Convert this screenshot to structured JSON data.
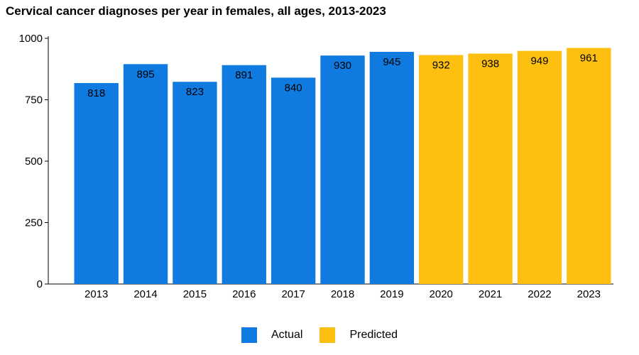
{
  "chart_data": {
    "type": "bar",
    "title": "Cervical cancer diagnoses per year in females, all ages, 2013-2023",
    "categories": [
      "2013",
      "2014",
      "2015",
      "2016",
      "2017",
      "2018",
      "2019",
      "2020",
      "2021",
      "2022",
      "2023"
    ],
    "series": [
      {
        "name": "Actual",
        "color": "#0f7ae0",
        "values": [
          818,
          895,
          823,
          891,
          840,
          930,
          945,
          null,
          null,
          null,
          null
        ]
      },
      {
        "name": "Predicted",
        "color": "#fdc010",
        "values": [
          null,
          null,
          null,
          null,
          null,
          null,
          null,
          932,
          938,
          949,
          961
        ]
      }
    ],
    "data_labels": [
      "818",
      "895",
      "823",
      "891",
      "840",
      "930",
      "945",
      "932",
      "938",
      "949",
      "961"
    ],
    "ylim": [
      0,
      1000
    ],
    "yticks": [
      0,
      250,
      500,
      750,
      1000
    ],
    "xlabel": "",
    "ylabel": "",
    "grid": false,
    "legend_position": "bottom"
  }
}
